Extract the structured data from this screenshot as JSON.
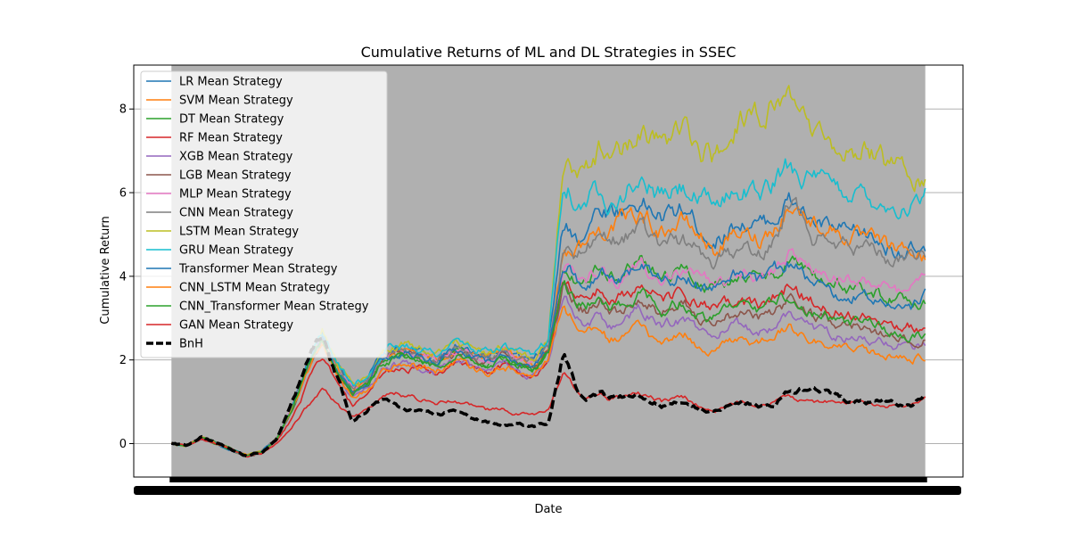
{
  "chart_data": {
    "type": "line",
    "title": "Cumulative Returns of ML and DL Strategies in SSEC",
    "xlabel": "Date",
    "ylabel": "Cumulative Return",
    "xlim": [
      -0.05,
      1.05
    ],
    "ylim": [
      -0.8,
      9.05
    ],
    "y_ticks": [
      0,
      2,
      4,
      6,
      8
    ],
    "x_tick_labels_note": "dense overlapping date labels (illegible)",
    "grid": "horizontal",
    "legend_position": "upper-left",
    "shaded_region": {
      "x": [
        0.0,
        1.0
      ],
      "color": "#b0b0b0"
    },
    "colors": {
      "LR": "#1f77b4",
      "SVM": "#ff7f0e",
      "DT": "#2ca02c",
      "RF": "#d62728",
      "XGB": "#9467bd",
      "LGB": "#8c564b",
      "MLP": "#e377c2",
      "CNN": "#7f7f7f",
      "LSTM": "#bcbd22",
      "GRU": "#17becf",
      "BnH": "#000000"
    },
    "base_path": {
      "x": [
        0,
        0.02,
        0.04,
        0.06,
        0.08,
        0.1,
        0.12,
        0.14,
        0.16,
        0.18,
        0.2,
        0.22,
        0.24,
        0.26,
        0.28,
        0.3,
        0.32,
        0.35,
        0.38,
        0.4,
        0.42,
        0.44,
        0.46,
        0.48,
        0.5,
        0.52,
        0.54,
        0.55,
        0.56,
        0.57,
        0.58,
        0.6,
        0.62,
        0.65,
        0.68,
        0.7,
        0.72,
        0.75,
        0.78,
        0.8,
        0.82,
        0.85,
        0.88,
        0.9,
        0.92,
        0.95,
        0.98,
        1.0
      ],
      "y": [
        0,
        -0.05,
        0.15,
        0.0,
        -0.15,
        -0.3,
        -0.2,
        0.1,
        0.8,
        1.8,
        2.6,
        1.8,
        1.3,
        1.5,
        2.1,
        2.2,
        2.2,
        2.0,
        2.3,
        2.1,
        2.0,
        2.2,
        2.0,
        1.9,
        2.3,
        4.5,
        3.8,
        3.7,
        3.8,
        3.9,
        3.6,
        3.7,
        4.2,
        3.9,
        4.1,
        3.8,
        3.9,
        3.9,
        3.8,
        3.9,
        4.0,
        3.7,
        3.5,
        3.5,
        3.6,
        3.2,
        3.3,
        3.5
      ]
    },
    "series": [
      {
        "name": "LR Mean Strategy",
        "color": "#1f77b4",
        "dashed": false,
        "y": [
          0,
          -0.05,
          0.15,
          0.0,
          -0.15,
          -0.28,
          -0.18,
          0.12,
          0.85,
          1.85,
          2.65,
          1.85,
          1.35,
          1.55,
          2.15,
          2.25,
          2.25,
          2.05,
          2.35,
          2.15,
          2.05,
          2.25,
          2.05,
          1.95,
          2.4,
          5.2,
          4.9,
          5.2,
          5.5,
          5.6,
          5.6,
          5.6,
          5.8,
          5.4,
          5.6,
          5.2,
          4.8,
          5.3,
          5.2,
          5.4,
          5.8,
          5.3,
          5.1,
          5.0,
          5.0,
          4.7,
          4.6,
          4.5
        ]
      },
      {
        "name": "SVM Mean Strategy",
        "color": "#ff7f0e",
        "dashed": false,
        "y": [
          0,
          -0.05,
          0.15,
          0.0,
          -0.15,
          -0.28,
          -0.18,
          0.12,
          0.85,
          1.85,
          2.6,
          1.8,
          1.3,
          1.5,
          2.1,
          2.2,
          2.2,
          2.0,
          2.3,
          2.1,
          2.0,
          2.2,
          2.0,
          1.9,
          2.3,
          4.6,
          4.7,
          4.8,
          5.0,
          5.1,
          5.2,
          5.3,
          5.5,
          5.1,
          5.3,
          5.0,
          4.6,
          5.0,
          4.9,
          5.2,
          5.7,
          5.3,
          5.1,
          4.9,
          4.9,
          4.7,
          4.6,
          4.4
        ]
      },
      {
        "name": "DT Mean Strategy",
        "color": "#2ca02c",
        "dashed": false,
        "y": [
          0,
          -0.05,
          0.15,
          0.0,
          -0.15,
          -0.3,
          -0.2,
          0.1,
          0.8,
          1.8,
          2.5,
          1.7,
          1.2,
          1.4,
          2.0,
          2.1,
          2.1,
          1.9,
          2.2,
          2.0,
          1.9,
          2.1,
          1.9,
          1.8,
          2.2,
          4.2,
          3.9,
          3.9,
          4.1,
          4.2,
          4.0,
          4.1,
          4.4,
          4.0,
          4.2,
          3.8,
          3.7,
          4.0,
          3.9,
          4.1,
          4.4,
          4.0,
          3.8,
          3.7,
          3.7,
          3.5,
          3.4,
          3.4
        ]
      },
      {
        "name": "RF Mean Strategy",
        "color": "#d62728",
        "dashed": false,
        "y": [
          0,
          -0.05,
          0.12,
          0.0,
          -0.15,
          -0.3,
          -0.22,
          0.05,
          0.6,
          1.4,
          2.1,
          1.4,
          0.9,
          1.1,
          1.7,
          1.8,
          1.8,
          1.7,
          1.9,
          1.8,
          1.7,
          1.9,
          1.7,
          1.6,
          2.0,
          3.9,
          3.5,
          3.5,
          3.6,
          3.7,
          3.4,
          3.5,
          3.8,
          3.4,
          3.6,
          3.3,
          3.2,
          3.4,
          3.3,
          3.5,
          3.8,
          3.4,
          3.2,
          3.1,
          3.1,
          2.9,
          2.8,
          2.7
        ]
      },
      {
        "name": "XGB Mean Strategy",
        "color": "#9467bd",
        "dashed": false,
        "y": [
          0,
          -0.05,
          0.15,
          0.0,
          -0.15,
          -0.3,
          -0.2,
          0.1,
          0.8,
          1.7,
          2.4,
          1.6,
          1.1,
          1.3,
          1.8,
          1.9,
          1.9,
          1.7,
          2.0,
          1.8,
          1.7,
          1.9,
          1.7,
          1.6,
          2.0,
          3.6,
          3.0,
          2.9,
          3.0,
          3.0,
          2.8,
          2.9,
          3.2,
          2.8,
          3.0,
          2.7,
          2.6,
          2.8,
          2.7,
          2.8,
          3.1,
          2.8,
          2.6,
          2.5,
          2.5,
          2.4,
          2.3,
          2.3
        ]
      },
      {
        "name": "LGB Mean Strategy",
        "color": "#8c564b",
        "dashed": false,
        "y": [
          0,
          -0.05,
          0.15,
          0.0,
          -0.15,
          -0.3,
          -0.2,
          0.1,
          0.8,
          1.8,
          2.5,
          1.7,
          1.2,
          1.4,
          2.0,
          2.1,
          2.1,
          1.9,
          2.2,
          2.0,
          1.9,
          2.1,
          1.9,
          1.8,
          2.2,
          3.8,
          3.3,
          3.2,
          3.3,
          3.4,
          3.1,
          3.2,
          3.5,
          3.1,
          3.3,
          3.0,
          2.9,
          3.1,
          3.0,
          3.2,
          3.4,
          3.1,
          2.9,
          2.8,
          2.8,
          2.6,
          2.5,
          2.5
        ]
      },
      {
        "name": "MLP Mean Strategy",
        "color": "#e377c2",
        "dashed": false,
        "y": [
          0,
          -0.05,
          0.15,
          0.0,
          -0.15,
          -0.28,
          -0.18,
          0.12,
          0.85,
          1.85,
          2.6,
          1.8,
          1.3,
          1.5,
          2.1,
          2.2,
          2.2,
          2.0,
          2.3,
          2.1,
          2.0,
          2.2,
          2.0,
          1.9,
          2.3,
          4.4,
          3.9,
          3.9,
          4.0,
          4.1,
          3.9,
          4.0,
          4.3,
          4.0,
          4.2,
          4.0,
          3.8,
          4.1,
          4.0,
          4.2,
          4.5,
          4.2,
          4.0,
          3.9,
          3.9,
          3.7,
          3.6,
          4.1
        ]
      },
      {
        "name": "CNN Mean Strategy",
        "color": "#7f7f7f",
        "dashed": false,
        "y": [
          0,
          -0.05,
          0.15,
          0.0,
          -0.15,
          -0.28,
          -0.18,
          0.12,
          0.85,
          1.85,
          2.6,
          1.8,
          1.3,
          1.5,
          2.1,
          2.2,
          2.2,
          2.0,
          2.3,
          2.1,
          2.0,
          2.2,
          2.0,
          1.9,
          2.3,
          4.6,
          4.5,
          4.6,
          4.8,
          4.9,
          4.8,
          4.9,
          5.2,
          4.7,
          4.9,
          4.6,
          4.3,
          4.7,
          4.6,
          4.9,
          5.8,
          5.0,
          4.8,
          4.7,
          4.7,
          4.5,
          4.4,
          4.6
        ]
      },
      {
        "name": "LSTM Mean Strategy",
        "color": "#bcbd22",
        "dashed": false,
        "y": [
          0,
          -0.05,
          0.15,
          0.0,
          -0.15,
          -0.28,
          -0.18,
          0.12,
          0.85,
          1.85,
          2.7,
          1.9,
          1.4,
          1.6,
          2.2,
          2.35,
          2.35,
          2.15,
          2.45,
          2.25,
          2.15,
          2.35,
          2.15,
          2.05,
          2.5,
          6.8,
          6.5,
          6.6,
          6.9,
          7.1,
          6.8,
          7.0,
          7.5,
          7.1,
          7.4,
          7.0,
          6.8,
          7.7,
          7.8,
          8.0,
          8.3,
          7.6,
          7.2,
          7.0,
          7.0,
          6.7,
          6.5,
          6.3
        ]
      },
      {
        "name": "GRU Mean Strategy",
        "color": "#17becf",
        "dashed": false,
        "y": [
          0,
          -0.05,
          0.15,
          0.0,
          -0.15,
          -0.28,
          -0.18,
          0.12,
          0.85,
          1.85,
          2.7,
          1.9,
          1.4,
          1.6,
          2.2,
          2.35,
          2.35,
          2.15,
          2.45,
          2.25,
          2.15,
          2.35,
          2.15,
          2.05,
          2.5,
          6.5,
          5.7,
          5.8,
          6.0,
          6.1,
          5.9,
          6.0,
          6.3,
          5.9,
          6.1,
          5.8,
          5.7,
          6.1,
          6.0,
          6.2,
          6.7,
          6.3,
          6.1,
          6.0,
          6.0,
          5.7,
          5.6,
          5.9
        ]
      },
      {
        "name": "Transformer Mean Strategy",
        "color": "#1f77b4",
        "dashed": false,
        "y": [
          0,
          -0.05,
          0.15,
          0.0,
          -0.15,
          -0.28,
          -0.18,
          0.12,
          0.85,
          1.8,
          2.55,
          1.75,
          1.25,
          1.45,
          2.05,
          2.15,
          2.15,
          1.95,
          2.25,
          2.05,
          1.95,
          2.15,
          1.95,
          1.85,
          2.25,
          4.3,
          3.9,
          3.9,
          4.0,
          4.1,
          3.9,
          4.0,
          4.3,
          3.9,
          4.1,
          3.8,
          3.7,
          4.0,
          3.9,
          4.1,
          4.3,
          3.8,
          3.6,
          3.5,
          3.5,
          3.3,
          3.2,
          3.5
        ]
      },
      {
        "name": "CNN_LSTM Mean Strategy",
        "color": "#ff7f0e",
        "dashed": false,
        "y": [
          0,
          -0.05,
          0.15,
          0.0,
          -0.15,
          -0.3,
          -0.2,
          0.1,
          0.8,
          1.7,
          2.4,
          1.6,
          1.1,
          1.3,
          1.8,
          1.9,
          1.9,
          1.7,
          2.0,
          1.8,
          1.7,
          1.9,
          1.7,
          1.6,
          2.0,
          3.3,
          2.7,
          2.6,
          2.7,
          2.7,
          2.5,
          2.6,
          2.8,
          2.4,
          2.6,
          2.3,
          2.2,
          2.5,
          2.4,
          2.6,
          2.8,
          2.5,
          2.3,
          2.2,
          2.2,
          2.1,
          2.0,
          2.1
        ]
      },
      {
        "name": "CNN_Transformer Mean Strategy",
        "color": "#2ca02c",
        "dashed": false,
        "y": [
          0,
          -0.05,
          0.15,
          0.0,
          -0.15,
          -0.3,
          -0.2,
          0.1,
          0.8,
          1.8,
          2.5,
          1.7,
          1.2,
          1.4,
          1.95,
          2.05,
          2.05,
          1.85,
          2.15,
          1.95,
          1.85,
          2.05,
          1.85,
          1.75,
          2.15,
          3.9,
          3.4,
          3.3,
          3.4,
          3.5,
          3.2,
          3.3,
          3.6,
          3.2,
          3.4,
          3.1,
          3.0,
          3.3,
          3.2,
          3.4,
          3.6,
          3.2,
          3.0,
          2.9,
          2.9,
          2.7,
          2.6,
          2.6
        ]
      },
      {
        "name": "GAN Mean Strategy",
        "color": "#d62728",
        "dashed": false,
        "y": [
          0,
          -0.05,
          0.12,
          0.0,
          -0.15,
          -0.3,
          -0.25,
          0.0,
          0.4,
          0.9,
          1.3,
          0.9,
          0.6,
          0.8,
          1.2,
          1.2,
          1.1,
          1.0,
          1.0,
          0.9,
          0.8,
          0.8,
          0.7,
          0.7,
          0.8,
          1.6,
          1.2,
          1.1,
          1.2,
          1.2,
          1.1,
          1.1,
          1.2,
          1.0,
          1.1,
          0.9,
          0.8,
          1.0,
          0.9,
          1.0,
          1.1,
          1.0,
          1.0,
          1.0,
          1.0,
          0.9,
          0.9,
          1.1
        ]
      },
      {
        "name": "BnH",
        "color": "#000000",
        "dashed": true,
        "y": [
          0,
          -0.05,
          0.15,
          0.0,
          -0.15,
          -0.3,
          -0.2,
          0.1,
          1.0,
          2.0,
          2.6,
          1.6,
          0.5,
          0.8,
          1.1,
          0.9,
          0.8,
          0.7,
          0.8,
          0.6,
          0.5,
          0.4,
          0.5,
          0.4,
          0.5,
          2.2,
          1.2,
          1.0,
          1.1,
          1.2,
          1.1,
          1.1,
          1.2,
          0.9,
          1.0,
          0.8,
          0.8,
          1.0,
          0.9,
          0.9,
          1.3,
          1.3,
          1.2,
          1.0,
          1.0,
          1.0,
          0.9,
          1.2
        ]
      }
    ]
  }
}
